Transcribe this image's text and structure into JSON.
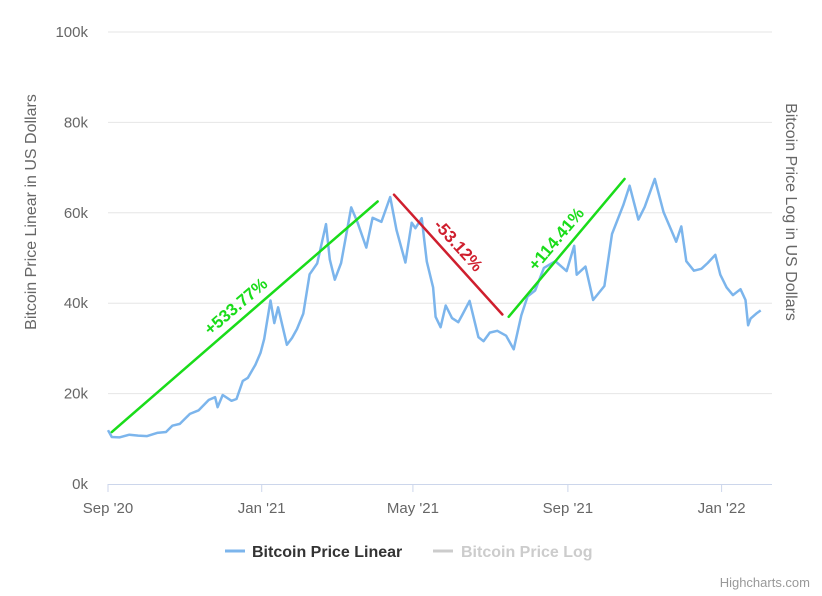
{
  "chart_data": {
    "type": "line",
    "yaxis_left_title": "Bitcoin Price Linear in US Dollars",
    "yaxis_right_title": "Bitcoin Price Log in US Dollars",
    "ylim": [
      0,
      100000
    ],
    "yticks": [
      {
        "value": 0,
        "label": "0k"
      },
      {
        "value": 20000,
        "label": "20k"
      },
      {
        "value": 40000,
        "label": "40k"
      },
      {
        "value": 60000,
        "label": "60k"
      },
      {
        "value": 80000,
        "label": "80k"
      },
      {
        "value": 100000,
        "label": "100k"
      }
    ],
    "xlim": [
      "2020-09-01",
      "2022-02-10"
    ],
    "xticks": [
      {
        "date": "2020-09-01",
        "label": "Sep '20"
      },
      {
        "date": "2021-01-01",
        "label": "Jan '21"
      },
      {
        "date": "2021-05-01",
        "label": "May '21"
      },
      {
        "date": "2021-09-01",
        "label": "Sep '21"
      },
      {
        "date": "2022-01-01",
        "label": "Jan '22"
      }
    ],
    "grid": true,
    "legend_position": "bottom-center",
    "series": [
      {
        "name": "Bitcoin Price Linear",
        "color": "#7cb5ec",
        "visible": true,
        "points": [
          [
            "2020-09-01",
            11900
          ],
          [
            "2020-09-04",
            10400
          ],
          [
            "2020-09-10",
            10300
          ],
          [
            "2020-09-18",
            10900
          ],
          [
            "2020-09-25",
            10700
          ],
          [
            "2020-10-02",
            10600
          ],
          [
            "2020-10-10",
            11300
          ],
          [
            "2020-10-17",
            11500
          ],
          [
            "2020-10-22",
            12900
          ],
          [
            "2020-10-28",
            13300
          ],
          [
            "2020-11-05",
            15500
          ],
          [
            "2020-11-12",
            16300
          ],
          [
            "2020-11-20",
            18600
          ],
          [
            "2020-11-25",
            19200
          ],
          [
            "2020-11-27",
            17000
          ],
          [
            "2020-12-01",
            19700
          ],
          [
            "2020-12-08",
            18400
          ],
          [
            "2020-12-12",
            18800
          ],
          [
            "2020-12-17",
            22800
          ],
          [
            "2020-12-21",
            23500
          ],
          [
            "2020-12-27",
            26400
          ],
          [
            "2020-12-31",
            29000
          ],
          [
            "2021-01-03",
            32100
          ],
          [
            "2021-01-08",
            40600
          ],
          [
            "2021-01-11",
            35600
          ],
          [
            "2021-01-14",
            39100
          ],
          [
            "2021-01-21",
            30800
          ],
          [
            "2021-01-25",
            32300
          ],
          [
            "2021-01-29",
            34300
          ],
          [
            "2021-02-03",
            37700
          ],
          [
            "2021-02-08",
            46400
          ],
          [
            "2021-02-14",
            48800
          ],
          [
            "2021-02-21",
            57500
          ],
          [
            "2021-02-24",
            49700
          ],
          [
            "2021-02-28",
            45200
          ],
          [
            "2021-03-05",
            48900
          ],
          [
            "2021-03-13",
            61200
          ],
          [
            "2021-03-18",
            57900
          ],
          [
            "2021-03-25",
            52300
          ],
          [
            "2021-03-30",
            58900
          ],
          [
            "2021-04-06",
            58000
          ],
          [
            "2021-04-13",
            63500
          ],
          [
            "2021-04-18",
            56200
          ],
          [
            "2021-04-25",
            49000
          ],
          [
            "2021-04-30",
            57800
          ],
          [
            "2021-05-03",
            56600
          ],
          [
            "2021-05-08",
            58800
          ],
          [
            "2021-05-12",
            49200
          ],
          [
            "2021-05-17",
            43500
          ],
          [
            "2021-05-19",
            37000
          ],
          [
            "2021-05-23",
            34700
          ],
          [
            "2021-05-27",
            39500
          ],
          [
            "2021-06-01",
            36700
          ],
          [
            "2021-06-06",
            35800
          ],
          [
            "2021-06-09",
            37300
          ],
          [
            "2021-06-15",
            40500
          ],
          [
            "2021-06-22",
            32500
          ],
          [
            "2021-06-26",
            31600
          ],
          [
            "2021-07-01",
            33500
          ],
          [
            "2021-07-07",
            33900
          ],
          [
            "2021-07-14",
            32800
          ],
          [
            "2021-07-20",
            29800
          ],
          [
            "2021-07-26",
            37300
          ],
          [
            "2021-07-31",
            41500
          ],
          [
            "2021-08-06",
            42800
          ],
          [
            "2021-08-13",
            47800
          ],
          [
            "2021-08-22",
            49300
          ],
          [
            "2021-08-31",
            47100
          ],
          [
            "2021-09-06",
            52700
          ],
          [
            "2021-09-08",
            46300
          ],
          [
            "2021-09-15",
            48100
          ],
          [
            "2021-09-21",
            40700
          ],
          [
            "2021-09-30",
            43800
          ],
          [
            "2021-10-06",
            55300
          ],
          [
            "2021-10-15",
            61700
          ],
          [
            "2021-10-20",
            66000
          ],
          [
            "2021-10-27",
            58500
          ],
          [
            "2021-11-01",
            61300
          ],
          [
            "2021-11-09",
            67500
          ],
          [
            "2021-11-16",
            60100
          ],
          [
            "2021-11-22",
            56200
          ],
          [
            "2021-11-26",
            53600
          ],
          [
            "2021-11-30",
            57000
          ],
          [
            "2021-12-04",
            49300
          ],
          [
            "2021-12-10",
            47200
          ],
          [
            "2021-12-16",
            47600
          ],
          [
            "2021-12-21",
            48900
          ],
          [
            "2021-12-27",
            50700
          ],
          [
            "2021-12-31",
            46300
          ],
          [
            "2022-01-05",
            43500
          ],
          [
            "2022-01-10",
            41800
          ],
          [
            "2022-01-16",
            43100
          ],
          [
            "2022-01-20",
            40700
          ],
          [
            "2022-01-22",
            35100
          ],
          [
            "2022-01-24",
            36600
          ],
          [
            "2022-01-29",
            37800
          ],
          [
            "2022-02-01",
            38400
          ]
        ]
      },
      {
        "name": "Bitcoin Price Log",
        "color": "#cccccc",
        "visible": false,
        "points": []
      }
    ],
    "annotations": [
      {
        "text": "+533.77%",
        "color": "#1adc1a",
        "from": [
          "2020-09-04",
          11500
        ],
        "to": [
          "2021-04-03",
          62500
        ]
      },
      {
        "text": "-53.12%",
        "color": "#cf1f2e",
        "from": [
          "2021-04-16",
          64000
        ],
        "to": [
          "2021-07-11",
          37500
        ]
      },
      {
        "text": "+114.41%",
        "color": "#1adc1a",
        "from": [
          "2021-07-16",
          37000
        ],
        "to": [
          "2021-10-16",
          67500
        ]
      }
    ]
  },
  "legend": {
    "items": [
      {
        "label": "Bitcoin Price Linear",
        "color": "#7cb5ec",
        "active": true
      },
      {
        "label": "Bitcoin Price Log",
        "color": "#cccccc",
        "active": false
      }
    ]
  },
  "credits": "Highcharts.com"
}
